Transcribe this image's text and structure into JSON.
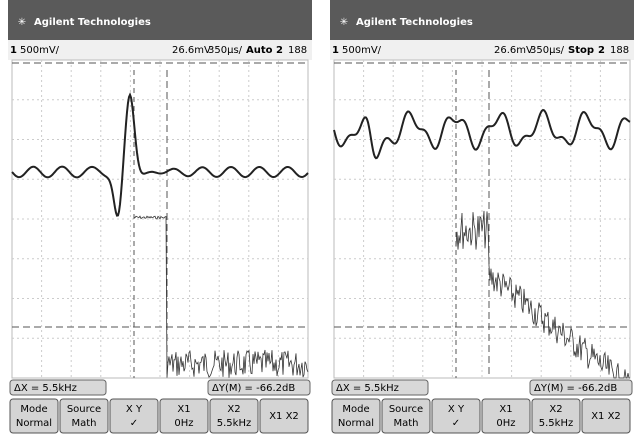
{
  "panels": [
    {
      "brand": "Agilent Technologies",
      "channel": "1",
      "scale": "500mV/",
      "trigger_level": "26.6mV",
      "timebase": "350µs/",
      "run_mode": "Auto",
      "trigger_source": "2",
      "extra": "188",
      "status_left": "ΔX = 5.5kHz",
      "status_right": "ΔY(M) = -66.2dB",
      "softkeys": [
        {
          "label": "Mode",
          "value": "Normal"
        },
        {
          "label": "Source",
          "value": "Math"
        },
        {
          "label": "X    Y",
          "value": "✓"
        },
        {
          "label": "X1",
          "value": "0Hz"
        },
        {
          "label": "X2",
          "value": "5.5kHz"
        },
        {
          "label": "X1 X2"
        }
      ]
    },
    {
      "brand": "Agilent Technologies",
      "channel": "1",
      "scale": "500mV/",
      "trigger_level": "26.6mV",
      "timebase": "350µs/",
      "run_mode": "Stop",
      "trigger_source": "2",
      "extra": "188",
      "status_left": "ΔX = 5.5kHz",
      "status_right": "ΔY(M) = -66.2dB",
      "softkeys": [
        {
          "label": "Mode",
          "value": "Normal"
        },
        {
          "label": "Source",
          "value": "Math"
        },
        {
          "label": "X    Y",
          "value": "✓"
        },
        {
          "label": "X1",
          "value": "0Hz"
        },
        {
          "label": "X2",
          "value": "5.5kHz"
        },
        {
          "label": "X1 X2"
        }
      ]
    }
  ]
}
